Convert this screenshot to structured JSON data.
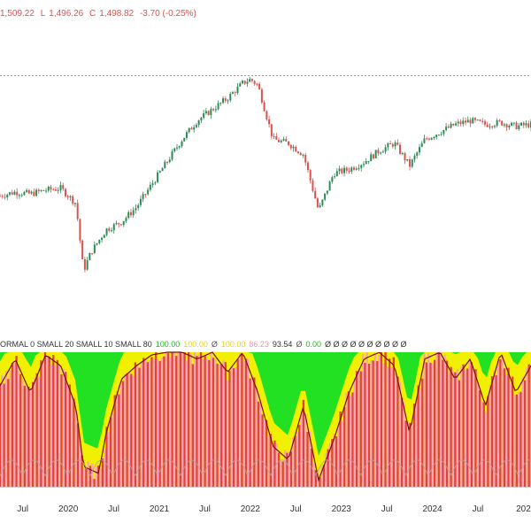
{
  "header": {
    "high": "1,509.22",
    "low_label": "L",
    "low": "1,496.26",
    "close_label": "C",
    "close": "1,498.82",
    "change": "-3.70 (-0.25%)"
  },
  "indicator": {
    "items": [
      {
        "text": "ORMAL 0 SMALL 20 SMALL 10 SMALL 80",
        "color": "#333333"
      },
      {
        "text": "100.00",
        "color": "#22b822"
      },
      {
        "text": "100.00",
        "color": "#e3d21a"
      },
      {
        "text": "Ø",
        "color": "#555555"
      },
      {
        "text": "100.00",
        "color": "#e3d21a"
      },
      {
        "text": "86.23",
        "color": "#e89aa4"
      },
      {
        "text": "93.54",
        "color": "#333333"
      },
      {
        "text": "Ø",
        "color": "#555555"
      },
      {
        "text": "0.00",
        "color": "#22b822"
      },
      {
        "text": "Ø Ø Ø Ø Ø Ø Ø Ø Ø Ø",
        "color": "#333333"
      }
    ]
  },
  "chart_data": [
    {
      "type": "candlestick",
      "x_range": [
        "2019-04",
        "2025-02"
      ],
      "reference_line": {
        "style": "dotted",
        "color": "#f08080",
        "level": 1500
      },
      "colors": {
        "up": "#2e8b57",
        "down": "#d9534f"
      },
      "series": [
        {
          "x": "2019-04",
          "y": 1180
        },
        {
          "x": "2019-06",
          "y": 1190
        },
        {
          "x": "2019-08",
          "y": 1185
        },
        {
          "x": "2019-10",
          "y": 1195
        },
        {
          "x": "2019-12",
          "y": 1200
        },
        {
          "x": "2020-02",
          "y": 1160
        },
        {
          "x": "2020-03",
          "y": 980
        },
        {
          "x": "2020-04",
          "y": 1030
        },
        {
          "x": "2020-06",
          "y": 1090
        },
        {
          "x": "2020-08",
          "y": 1110
        },
        {
          "x": "2020-10",
          "y": 1150
        },
        {
          "x": "2020-12",
          "y": 1210
        },
        {
          "x": "2021-02",
          "y": 1270
        },
        {
          "x": "2021-04",
          "y": 1330
        },
        {
          "x": "2021-06",
          "y": 1380
        },
        {
          "x": "2021-08",
          "y": 1410
        },
        {
          "x": "2021-10",
          "y": 1440
        },
        {
          "x": "2021-12",
          "y": 1480
        },
        {
          "x": "2022-01",
          "y": 1490
        },
        {
          "x": "2022-02",
          "y": 1475
        },
        {
          "x": "2022-04",
          "y": 1330
        },
        {
          "x": "2022-06",
          "y": 1320
        },
        {
          "x": "2022-08",
          "y": 1290
        },
        {
          "x": "2022-10",
          "y": 1140
        },
        {
          "x": "2022-12",
          "y": 1240
        },
        {
          "x": "2023-02",
          "y": 1250
        },
        {
          "x": "2023-04",
          "y": 1270
        },
        {
          "x": "2023-06",
          "y": 1300
        },
        {
          "x": "2023-08",
          "y": 1320
        },
        {
          "x": "2023-10",
          "y": 1260
        },
        {
          "x": "2023-12",
          "y": 1330
        },
        {
          "x": "2024-02",
          "y": 1350
        },
        {
          "x": "2024-04",
          "y": 1370
        },
        {
          "x": "2024-06",
          "y": 1380
        },
        {
          "x": "2024-08",
          "y": 1370
        },
        {
          "x": "2024-10",
          "y": 1375
        },
        {
          "x": "2024-12",
          "y": 1365
        },
        {
          "x": "2025-02",
          "y": 1370
        }
      ],
      "y_range": [
        900,
        1560
      ]
    },
    {
      "type": "area",
      "name": "",
      "y_range": [
        0,
        100
      ],
      "colors": {
        "background": "#22e022",
        "band": "#f0f000",
        "fill_dark": "#e0433a",
        "fill_light": "#f7a6b5",
        "line": "#7a1010",
        "thin_line": "#b0a0a0"
      },
      "oscillator": [
        {
          "x": "2019-04",
          "y": 75
        },
        {
          "x": "2019-06",
          "y": 95
        },
        {
          "x": "2019-08",
          "y": 70
        },
        {
          "x": "2019-10",
          "y": 98
        },
        {
          "x": "2019-12",
          "y": 90
        },
        {
          "x": "2020-02",
          "y": 60
        },
        {
          "x": "2020-03",
          "y": 15
        },
        {
          "x": "2020-05",
          "y": 10
        },
        {
          "x": "2020-06",
          "y": 40
        },
        {
          "x": "2020-08",
          "y": 80
        },
        {
          "x": "2020-10",
          "y": 90
        },
        {
          "x": "2020-12",
          "y": 98
        },
        {
          "x": "2021-02",
          "y": 100
        },
        {
          "x": "2021-04",
          "y": 100
        },
        {
          "x": "2021-06",
          "y": 95
        },
        {
          "x": "2021-08",
          "y": 100
        },
        {
          "x": "2021-10",
          "y": 85
        },
        {
          "x": "2021-12",
          "y": 100
        },
        {
          "x": "2022-02",
          "y": 70
        },
        {
          "x": "2022-04",
          "y": 30
        },
        {
          "x": "2022-06",
          "y": 20
        },
        {
          "x": "2022-08",
          "y": 60
        },
        {
          "x": "2022-10",
          "y": 5
        },
        {
          "x": "2022-12",
          "y": 35
        },
        {
          "x": "2023-02",
          "y": 70
        },
        {
          "x": "2023-04",
          "y": 95
        },
        {
          "x": "2023-06",
          "y": 100
        },
        {
          "x": "2023-08",
          "y": 90
        },
        {
          "x": "2023-10",
          "y": 40
        },
        {
          "x": "2023-12",
          "y": 95
        },
        {
          "x": "2024-02",
          "y": 100
        },
        {
          "x": "2024-04",
          "y": 80
        },
        {
          "x": "2024-06",
          "y": 95
        },
        {
          "x": "2024-08",
          "y": 60
        },
        {
          "x": "2024-10",
          "y": 100
        },
        {
          "x": "2024-12",
          "y": 70
        },
        {
          "x": "2025-02",
          "y": 90
        }
      ]
    }
  ],
  "x_axis": {
    "ticks": [
      {
        "label": "Jul",
        "pos": "2019-07"
      },
      {
        "label": "2020",
        "pos": "2020-01"
      },
      {
        "label": "Jul",
        "pos": "2020-07"
      },
      {
        "label": "2021",
        "pos": "2021-01"
      },
      {
        "label": "Jul",
        "pos": "2021-07"
      },
      {
        "label": "2022",
        "pos": "2022-01"
      },
      {
        "label": "Jul",
        "pos": "2022-07"
      },
      {
        "label": "2023",
        "pos": "2023-01"
      },
      {
        "label": "Jul",
        "pos": "2023-07"
      },
      {
        "label": "2024",
        "pos": "2024-01"
      },
      {
        "label": "Jul",
        "pos": "2024-07"
      },
      {
        "label": "202",
        "pos": "2025-01"
      }
    ]
  }
}
